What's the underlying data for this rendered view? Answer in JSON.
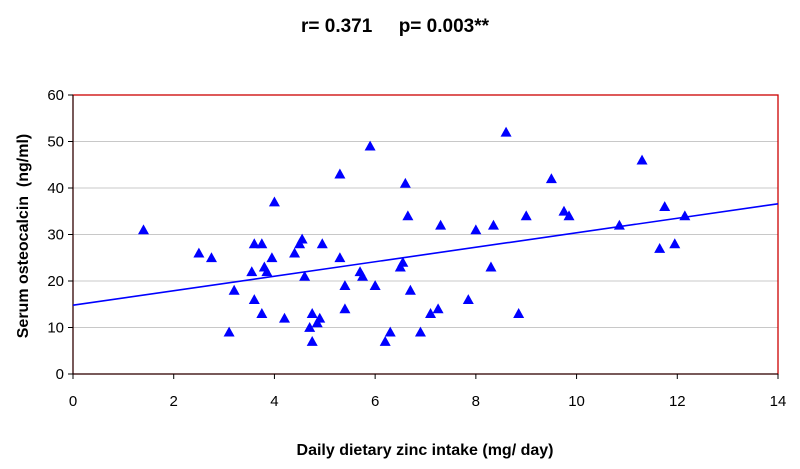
{
  "chart_data": {
    "type": "scatter",
    "title": "r= 0.371     p= 0.003**",
    "xlabel": "Daily dietary zinc intake (mg/ day)",
    "ylabel": "Serum osteocalcin  (ng/ml)",
    "xlim": [
      0,
      14
    ],
    "ylim": [
      0,
      60
    ],
    "xticks": [
      0,
      2,
      4,
      6,
      8,
      10,
      12,
      14
    ],
    "yticks": [
      0,
      10,
      20,
      30,
      40,
      50,
      60
    ],
    "grid": "horizontal",
    "legend": "none",
    "series": [
      {
        "marker": "triangle",
        "color": "#0000ff",
        "points": [
          {
            "x": 1.4,
            "y": 31
          },
          {
            "x": 2.5,
            "y": 26
          },
          {
            "x": 2.75,
            "y": 25
          },
          {
            "x": 3.1,
            "y": 9
          },
          {
            "x": 3.2,
            "y": 18
          },
          {
            "x": 3.55,
            "y": 22
          },
          {
            "x": 3.6,
            "y": 28
          },
          {
            "x": 3.6,
            "y": 16
          },
          {
            "x": 3.75,
            "y": 28
          },
          {
            "x": 3.75,
            "y": 13
          },
          {
            "x": 3.8,
            "y": 23
          },
          {
            "x": 3.85,
            "y": 22
          },
          {
            "x": 3.95,
            "y": 25
          },
          {
            "x": 4.0,
            "y": 37
          },
          {
            "x": 4.2,
            "y": 12
          },
          {
            "x": 4.4,
            "y": 26
          },
          {
            "x": 4.5,
            "y": 28
          },
          {
            "x": 4.55,
            "y": 29
          },
          {
            "x": 4.6,
            "y": 21
          },
          {
            "x": 4.7,
            "y": 10
          },
          {
            "x": 4.75,
            "y": 7
          },
          {
            "x": 4.75,
            "y": 13
          },
          {
            "x": 4.85,
            "y": 11
          },
          {
            "x": 4.9,
            "y": 12
          },
          {
            "x": 4.95,
            "y": 28
          },
          {
            "x": 5.3,
            "y": 43
          },
          {
            "x": 5.3,
            "y": 25
          },
          {
            "x": 5.4,
            "y": 14
          },
          {
            "x": 5.4,
            "y": 19
          },
          {
            "x": 5.7,
            "y": 22
          },
          {
            "x": 5.75,
            "y": 21
          },
          {
            "x": 5.9,
            "y": 49
          },
          {
            "x": 6.0,
            "y": 19
          },
          {
            "x": 6.2,
            "y": 7
          },
          {
            "x": 6.3,
            "y": 9
          },
          {
            "x": 6.5,
            "y": 23
          },
          {
            "x": 6.55,
            "y": 24
          },
          {
            "x": 6.6,
            "y": 41
          },
          {
            "x": 6.65,
            "y": 34
          },
          {
            "x": 6.7,
            "y": 18
          },
          {
            "x": 6.9,
            "y": 9
          },
          {
            "x": 7.1,
            "y": 13
          },
          {
            "x": 7.25,
            "y": 14
          },
          {
            "x": 7.3,
            "y": 32
          },
          {
            "x": 7.85,
            "y": 16
          },
          {
            "x": 8.0,
            "y": 31
          },
          {
            "x": 8.3,
            "y": 23
          },
          {
            "x": 8.35,
            "y": 32
          },
          {
            "x": 8.6,
            "y": 52
          },
          {
            "x": 8.85,
            "y": 13
          },
          {
            "x": 9.0,
            "y": 34
          },
          {
            "x": 9.5,
            "y": 42
          },
          {
            "x": 9.75,
            "y": 35
          },
          {
            "x": 9.85,
            "y": 34
          },
          {
            "x": 10.85,
            "y": 32
          },
          {
            "x": 11.3,
            "y": 46
          },
          {
            "x": 11.65,
            "y": 27
          },
          {
            "x": 11.75,
            "y": 36
          },
          {
            "x": 11.95,
            "y": 28
          },
          {
            "x": 12.15,
            "y": 34
          }
        ]
      }
    ],
    "trendline": {
      "type": "linear",
      "color": "#0000ff",
      "x": [
        0,
        14
      ],
      "y": [
        14.8,
        36.6
      ]
    },
    "plot_border_color": "#cc0000",
    "grid_color": "#c8c8c8"
  }
}
